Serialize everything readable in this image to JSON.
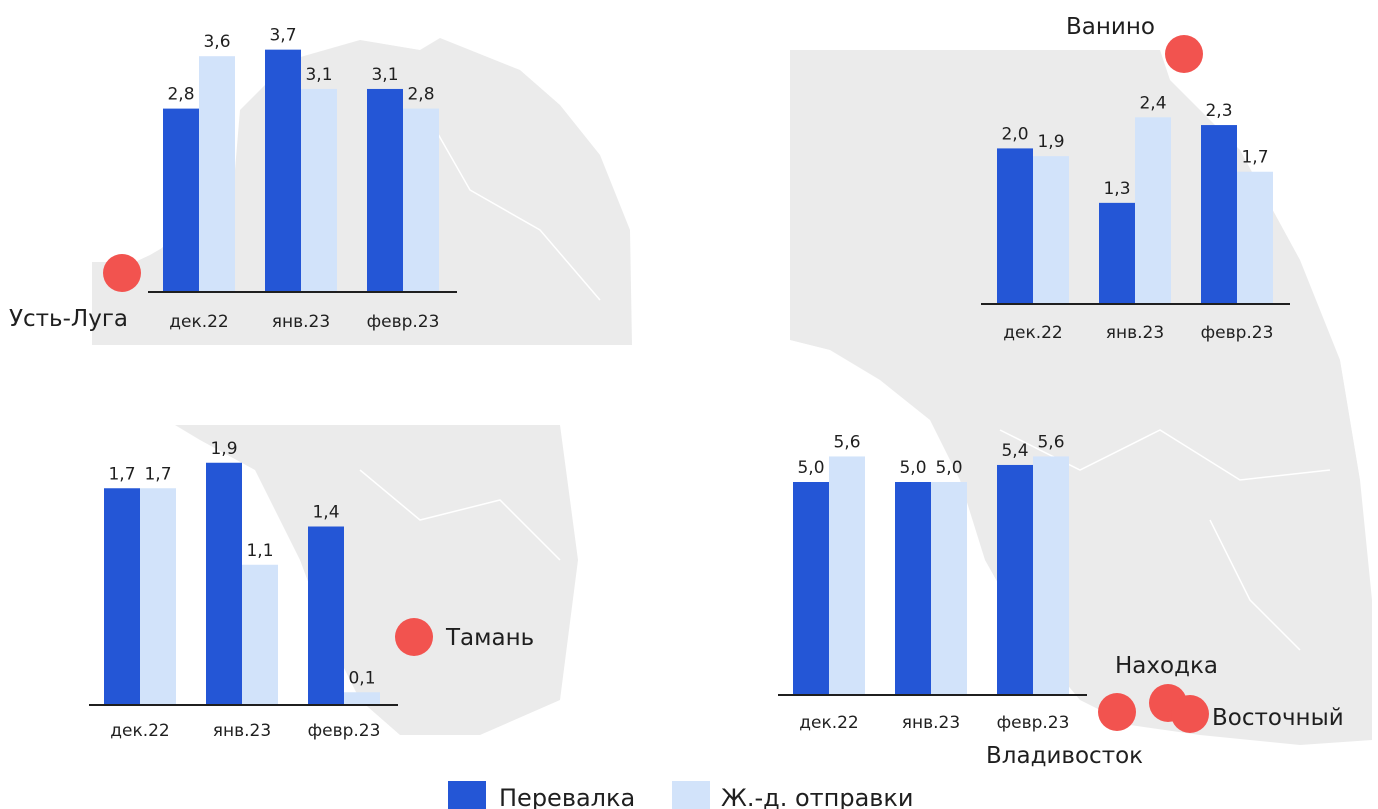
{
  "colors": {
    "perevalka": "#2456d6",
    "rail": "#d2e3fa",
    "port_marker": "#f2534f",
    "map": "#ebebeb"
  },
  "legend": {
    "position": "bottom-center",
    "items": [
      {
        "label": "Перевалка",
        "color": "#2456d6"
      },
      {
        "label": "Ж.-д. отправки",
        "color": "#d2e3fa"
      }
    ]
  },
  "ports": {
    "ust_luga": "Усть-Луга",
    "vanino": "Ванино",
    "taman": "Тамань",
    "nakhodka": "Находка",
    "vostochny": "Восточный",
    "vladivostok": "Владивосток"
  },
  "chart_data": [
    {
      "type": "bar",
      "panel": "top-left",
      "categories": [
        "дек.22",
        "янв.23",
        "февр.23"
      ],
      "series": [
        {
          "name": "Перевалка",
          "values": [
            2.8,
            3.7,
            3.1
          ],
          "labels": [
            "2,8",
            "3,7",
            "3,1"
          ]
        },
        {
          "name": "Ж.-д. отправки",
          "values": [
            3.6,
            3.1,
            2.8
          ],
          "labels": [
            "3,6",
            "3,1",
            "2,8"
          ]
        }
      ],
      "title": "",
      "xlabel": "",
      "ylabel": "",
      "ylim": [
        0,
        3.7
      ]
    },
    {
      "type": "bar",
      "panel": "top-right",
      "categories": [
        "дек.22",
        "янв.23",
        "февр.23"
      ],
      "series": [
        {
          "name": "Перевалка",
          "values": [
            2.0,
            1.3,
            2.3
          ],
          "labels": [
            "2,0",
            "1,3",
            "2,3"
          ]
        },
        {
          "name": "Ж.-д. отправки",
          "values": [
            1.9,
            2.4,
            1.7
          ],
          "labels": [
            "1,9",
            "2,4",
            "1,7"
          ]
        }
      ],
      "title": "",
      "xlabel": "",
      "ylabel": "",
      "ylim": [
        0,
        2.4
      ]
    },
    {
      "type": "bar",
      "panel": "bottom-left",
      "categories": [
        "дек.22",
        "янв.23",
        "февр.23"
      ],
      "series": [
        {
          "name": "Перевалка",
          "values": [
            1.7,
            1.9,
            1.4
          ],
          "labels": [
            "1,7",
            "1,9",
            "1,4"
          ]
        },
        {
          "name": "Ж.-д. отправки",
          "values": [
            1.7,
            1.1,
            0.1
          ],
          "labels": [
            "1,7",
            "1,1",
            "0,1"
          ]
        }
      ],
      "title": "",
      "xlabel": "",
      "ylabel": "",
      "ylim": [
        0,
        1.9
      ]
    },
    {
      "type": "bar",
      "panel": "bottom-right",
      "categories": [
        "дек.22",
        "янв.23",
        "февр.23"
      ],
      "series": [
        {
          "name": "Перевалка",
          "values": [
            5.0,
            5.0,
            5.4
          ],
          "labels": [
            "5,0",
            "5,0",
            "5,4"
          ]
        },
        {
          "name": "Ж.-д. отправки",
          "values": [
            5.6,
            5.0,
            5.6
          ],
          "labels": [
            "5,6",
            "5,0",
            "5,6"
          ]
        }
      ],
      "title": "",
      "xlabel": "",
      "ylabel": "",
      "ylim": [
        0,
        5.6
      ]
    }
  ]
}
